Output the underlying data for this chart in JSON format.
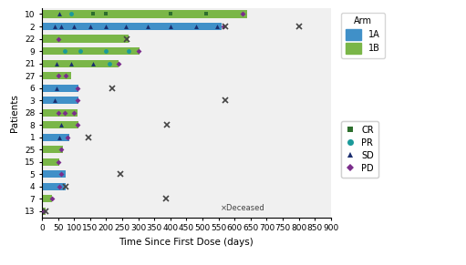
{
  "patients": [
    10,
    2,
    22,
    9,
    21,
    27,
    6,
    3,
    28,
    8,
    1,
    25,
    15,
    5,
    4,
    7,
    13
  ],
  "bar_ends": [
    640,
    560,
    270,
    305,
    240,
    90,
    115,
    115,
    110,
    115,
    85,
    65,
    55,
    75,
    75,
    30,
    10
  ],
  "arm_colors": [
    "#7ab648",
    "#4090c8",
    "#7ab648",
    "#7ab648",
    "#7ab648",
    "#7ab648",
    "#4090c8",
    "#4090c8",
    "#7ab648",
    "#7ab648",
    "#4090c8",
    "#7ab648",
    "#7ab648",
    "#4090c8",
    "#4090c8",
    "#7ab648",
    "#7ab648"
  ],
  "deceased_x": [
    800,
    570,
    265,
    570,
    385,
    10,
    220,
    390,
    145,
    245,
    75
  ],
  "deceased_y": [
    2,
    2,
    22,
    3,
    7,
    13,
    6,
    8,
    1,
    5,
    4
  ],
  "markers": [
    {
      "patient": 10,
      "x": [
        55,
        90,
        160,
        200,
        400,
        510,
        625
      ],
      "type": [
        "SD",
        "PR",
        "CR",
        "CR",
        "CR",
        "CR",
        "PD"
      ]
    },
    {
      "patient": 2,
      "x": [
        40,
        60,
        100,
        150,
        200,
        260,
        330,
        400,
        480,
        545,
        565
      ],
      "type": [
        "SD",
        "SD",
        "SD",
        "SD",
        "SD",
        "SD",
        "SD",
        "SD",
        "SD",
        "SD",
        "PD"
      ]
    },
    {
      "patient": 22,
      "x": [
        50
      ],
      "type": [
        "PD"
      ]
    },
    {
      "patient": 9,
      "x": [
        70,
        120,
        200,
        270,
        300
      ],
      "type": [
        "PR",
        "PR",
        "PR",
        "PR",
        "PD"
      ]
    },
    {
      "patient": 21,
      "x": [
        45,
        90,
        160,
        210,
        240
      ],
      "type": [
        "SD",
        "SD",
        "SD",
        "PR",
        "PD"
      ]
    },
    {
      "patient": 27,
      "x": [
        50,
        75
      ],
      "type": [
        "PD",
        "PD"
      ]
    },
    {
      "patient": 6,
      "x": [
        45,
        110
      ],
      "type": [
        "SD",
        "PD"
      ]
    },
    {
      "patient": 3,
      "x": [
        40,
        110
      ],
      "type": [
        "SD",
        "PD"
      ]
    },
    {
      "patient": 28,
      "x": [
        50,
        70,
        100
      ],
      "type": [
        "PD",
        "PD",
        "PD"
      ]
    },
    {
      "patient": 8,
      "x": [
        60,
        110
      ],
      "type": [
        "SD",
        "PD"
      ]
    },
    {
      "patient": 1,
      "x": [
        55,
        80
      ],
      "type": [
        "SD",
        "PD"
      ]
    },
    {
      "patient": 25,
      "x": [
        60
      ],
      "type": [
        "PD"
      ]
    },
    {
      "patient": 15,
      "x": [
        50
      ],
      "type": [
        "PD"
      ]
    },
    {
      "patient": 5,
      "x": [
        60
      ],
      "type": [
        "PD"
      ]
    },
    {
      "patient": 4,
      "x": [
        55
      ],
      "type": [
        "PD"
      ]
    },
    {
      "patient": 7,
      "x": [
        30
      ],
      "type": [
        "PD"
      ]
    },
    {
      "patient": 13,
      "x": [
        5
      ],
      "type": [
        "PD"
      ]
    }
  ],
  "cr_color": "#2d6e2d",
  "pr_color": "#1a9a9a",
  "sd_color": "#1a2d6e",
  "pd_color": "#7b2d8b",
  "arm1a_color": "#4090c8",
  "arm1b_color": "#7ab648",
  "bar_height": 0.6,
  "xlabel": "Time Since First Dose (days)",
  "ylabel": "Patients",
  "xlim": [
    0,
    900
  ],
  "xticks": [
    0,
    50,
    100,
    150,
    200,
    250,
    300,
    350,
    400,
    450,
    500,
    550,
    600,
    650,
    700,
    750,
    800,
    850,
    900
  ],
  "bg_color": "#f0f0f0",
  "deceased_label": "×Deceased"
}
